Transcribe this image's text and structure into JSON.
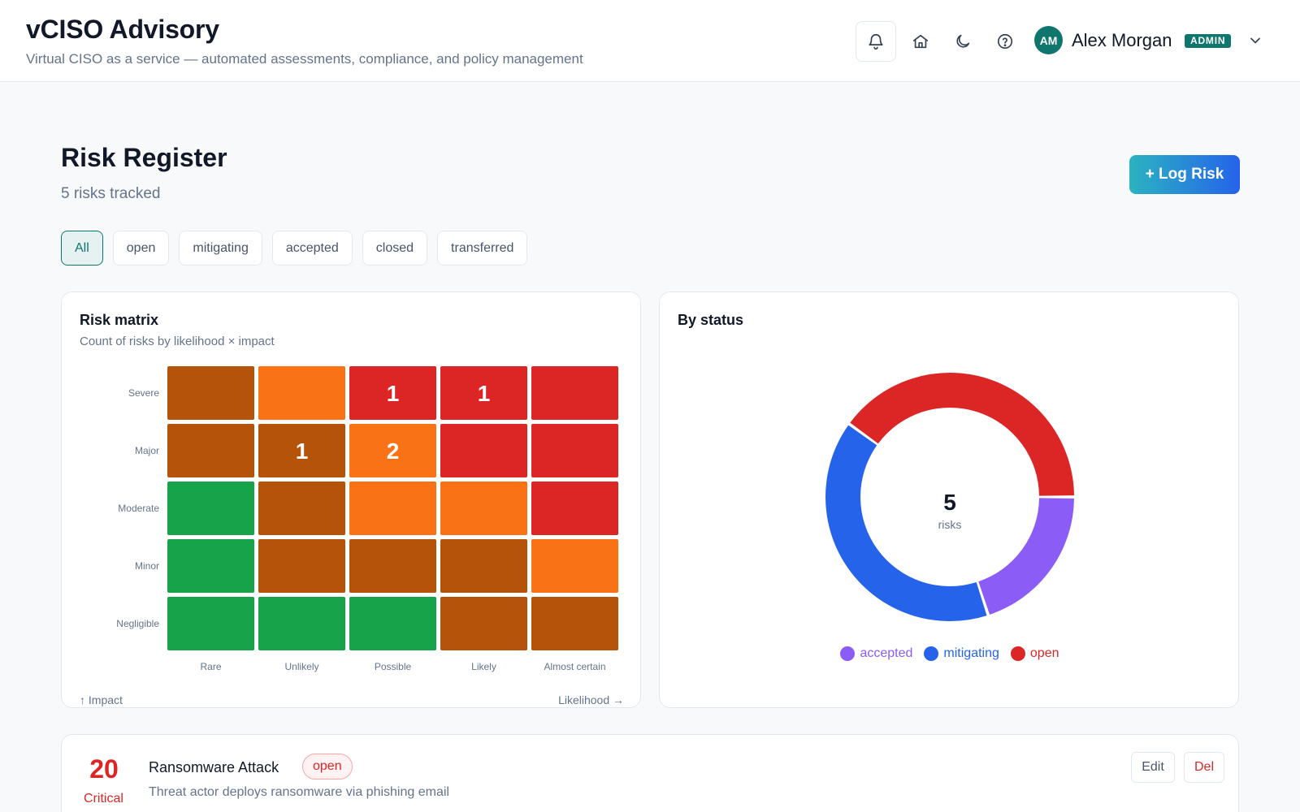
{
  "header": {
    "title": "vCISO Advisory",
    "subtitle": "Virtual CISO as a service — automated assessments, compliance, and policy management",
    "icons": [
      "bell-icon",
      "home-icon",
      "moon-icon",
      "help-icon",
      "chevron-down-icon"
    ],
    "user": {
      "initials": "AM",
      "name": "Alex Morgan",
      "role": "ADMIN"
    }
  },
  "page": {
    "title": "Risk Register",
    "subtitle": "5 risks tracked",
    "log_button": "+ Log Risk"
  },
  "filters": [
    {
      "label": "All",
      "active": true
    },
    {
      "label": "open",
      "active": false
    },
    {
      "label": "mitigating",
      "active": false
    },
    {
      "label": "accepted",
      "active": false
    },
    {
      "label": "closed",
      "active": false
    },
    {
      "label": "transferred",
      "active": false
    }
  ],
  "matrix": {
    "title": "Risk matrix",
    "subtitle": "Count of risks by likelihood × impact",
    "y_axis_label": "↑ Impact",
    "x_axis_label": "Likelihood →",
    "colors": {
      "low": "#16a34a",
      "medium": "#b45309",
      "high": "#f97316",
      "critical": "#dc2626"
    }
  },
  "status": {
    "title": "By status",
    "center_value": "5",
    "center_label": "risks"
  },
  "risk_card": {
    "score": "20",
    "level": "Critical",
    "title": "Ransomware Attack",
    "status": "open",
    "description": "Threat actor deploys ransomware via phishing email",
    "edit_label": "Edit",
    "delete_label": "Del"
  },
  "chart_data": [
    {
      "type": "heatmap",
      "title": "Risk matrix",
      "subtitle": "Count of risks by likelihood × impact",
      "xlabel": "Likelihood →",
      "ylabel": "↑ Impact",
      "x_categories": [
        "Rare",
        "Unlikely",
        "Possible",
        "Likely",
        "Almost certain"
      ],
      "y_categories": [
        "Severe",
        "Major",
        "Moderate",
        "Minor",
        "Negligible"
      ],
      "cells": [
        [
          "medium",
          "high",
          "critical",
          "critical",
          "critical"
        ],
        [
          "medium",
          "medium",
          "high",
          "critical",
          "critical"
        ],
        [
          "low",
          "medium",
          "high",
          "high",
          "critical"
        ],
        [
          "low",
          "medium",
          "medium",
          "medium",
          "high"
        ],
        [
          "low",
          "low",
          "low",
          "medium",
          "medium"
        ]
      ],
      "counts": [
        [
          0,
          0,
          1,
          1,
          0
        ],
        [
          0,
          1,
          2,
          0,
          0
        ],
        [
          0,
          0,
          0,
          0,
          0
        ],
        [
          0,
          0,
          0,
          0,
          0
        ],
        [
          0,
          0,
          0,
          0,
          0
        ]
      ]
    },
    {
      "type": "pie",
      "title": "By status",
      "donut": true,
      "series": [
        {
          "name": "accepted",
          "value": 1,
          "color": "#8b5cf6"
        },
        {
          "name": "mitigating",
          "value": 2,
          "color": "#2563eb"
        },
        {
          "name": "open",
          "value": 2,
          "color": "#dc2626"
        }
      ]
    }
  ]
}
